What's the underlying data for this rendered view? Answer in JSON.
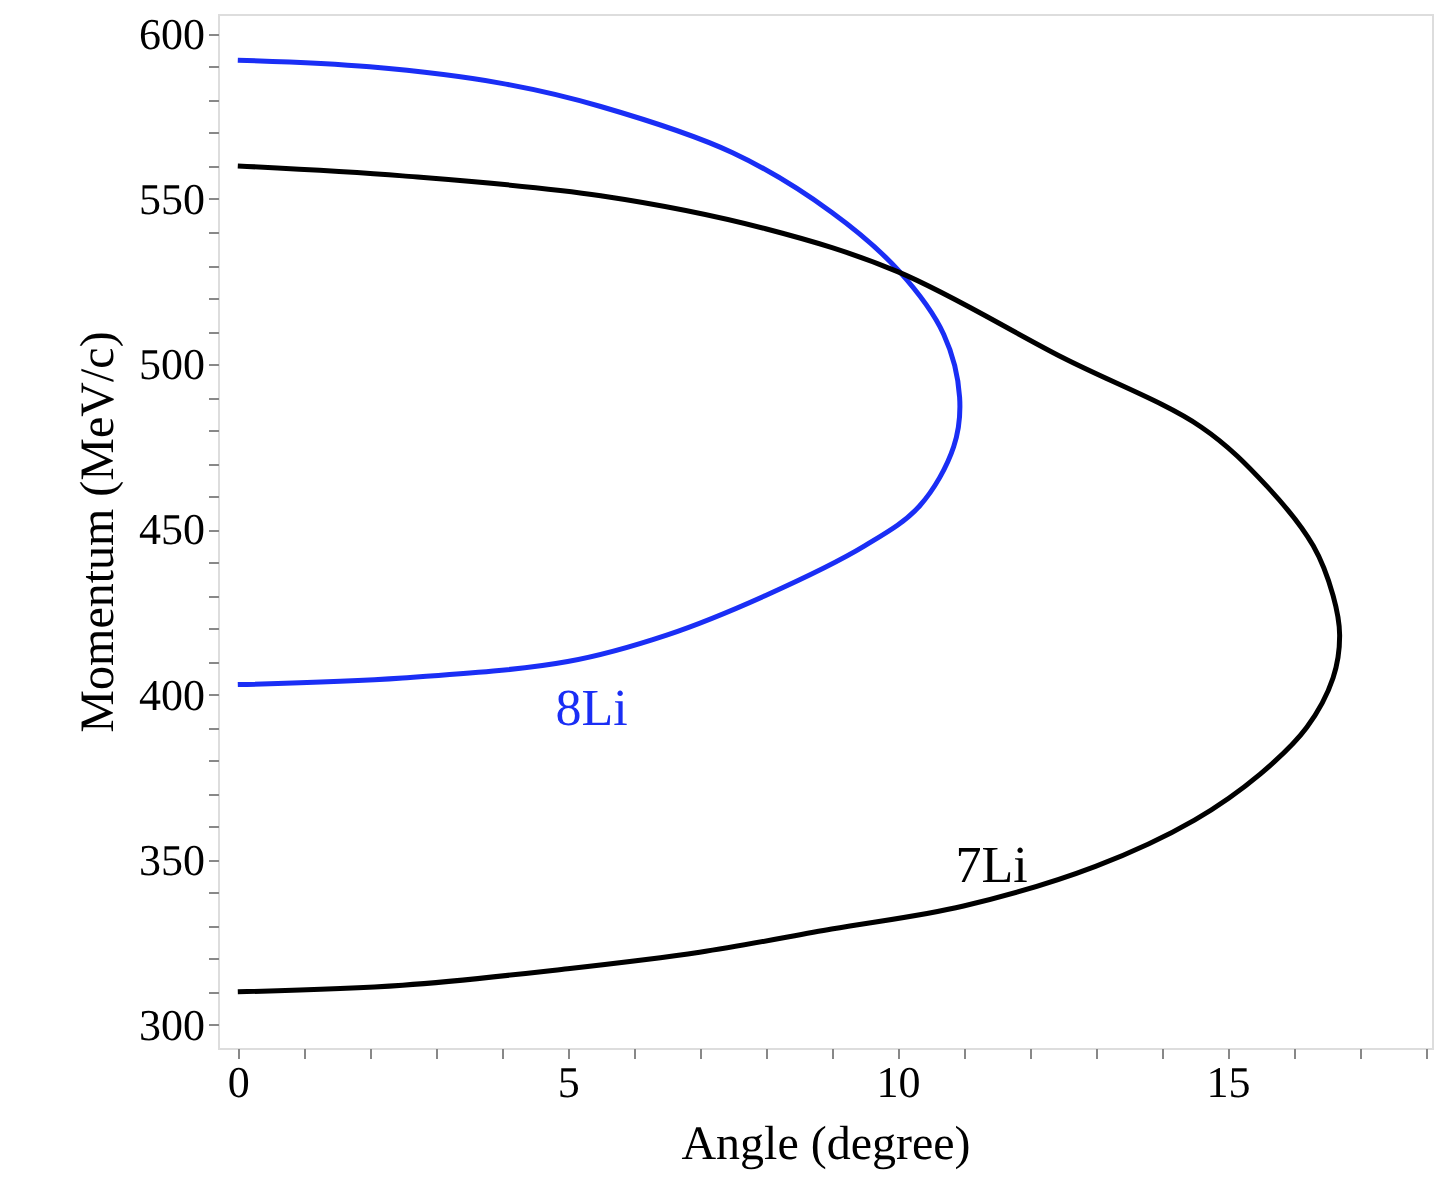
{
  "chart_data": {
    "type": "line",
    "xlabel": "Angle (degree)",
    "ylabel": "Momentum (MeV/c)",
    "xlim": [
      -0.3,
      18.1
    ],
    "ylim": [
      293,
      606
    ],
    "xticks": [
      0,
      {
        "value": 1,
        "label": null
      },
      {
        "value": 2,
        "label": null
      },
      {
        "value": 3,
        "label": null
      },
      {
        "value": 4,
        "label": null
      },
      5,
      {
        "value": 6,
        "label": null
      },
      {
        "value": 7,
        "label": null
      },
      {
        "value": 8,
        "label": null
      },
      {
        "value": 9,
        "label": null
      },
      10,
      {
        "value": 11,
        "label": null
      },
      {
        "value": 12,
        "label": null
      },
      {
        "value": 13,
        "label": null
      },
      {
        "value": 14,
        "label": null
      },
      15,
      {
        "value": 16,
        "label": null
      },
      {
        "value": 17,
        "label": null
      },
      {
        "value": 18,
        "label": null
      }
    ],
    "yticks": [
      300,
      {
        "value": 310,
        "label": null
      },
      {
        "value": 320,
        "label": null
      },
      {
        "value": 330,
        "label": null
      },
      {
        "value": 340,
        "label": null
      },
      350,
      {
        "value": 360,
        "label": null
      },
      {
        "value": 370,
        "label": null
      },
      {
        "value": 380,
        "label": null
      },
      {
        "value": 390,
        "label": null
      },
      400,
      {
        "value": 410,
        "label": null
      },
      {
        "value": 420,
        "label": null
      },
      {
        "value": 430,
        "label": null
      },
      {
        "value": 440,
        "label": null
      },
      450,
      {
        "value": 460,
        "label": null
      },
      {
        "value": 470,
        "label": null
      },
      {
        "value": 480,
        "label": null
      },
      {
        "value": 490,
        "label": null
      },
      500,
      {
        "value": 510,
        "label": null
      },
      {
        "value": 520,
        "label": null
      },
      {
        "value": 530,
        "label": null
      },
      {
        "value": 540,
        "label": null
      },
      550,
      {
        "value": 560,
        "label": null
      },
      {
        "value": 570,
        "label": null
      },
      {
        "value": 580,
        "label": null
      },
      {
        "value": 590,
        "label": null
      },
      600
    ],
    "grid": false,
    "marker": "none",
    "line_style": "solid",
    "series": [
      {
        "name": "8Li",
        "color": "#1a2ef5",
        "x": [
          0,
          2,
          4,
          5.5,
          7.5,
          9,
          10.03,
          10.7,
          10.94,
          10.85,
          10.33,
          9.5,
          8,
          6.5,
          5,
          2.5,
          0
        ],
        "values": [
          592,
          590,
          585,
          578,
          564,
          546,
          528,
          509,
          490,
          475,
          457,
          445,
          430,
          418,
          410,
          405,
          403
        ]
      },
      {
        "name": "7Li",
        "color": "#000000",
        "x": [
          0,
          2.5,
          5.5,
          8,
          10,
          12.5,
          14.6,
          15.6,
          16.3,
          16.6,
          16.7,
          16.6,
          16.2,
          15.5,
          14.5,
          13,
          11,
          9,
          7,
          5,
          2.5,
          0
        ],
        "values": [
          560,
          557,
          551,
          541,
          528,
          502,
          481,
          463,
          445,
          430,
          418,
          405,
          390,
          376,
          362,
          348,
          336,
          329,
          322,
          317,
          312,
          310
        ]
      }
    ]
  }
}
